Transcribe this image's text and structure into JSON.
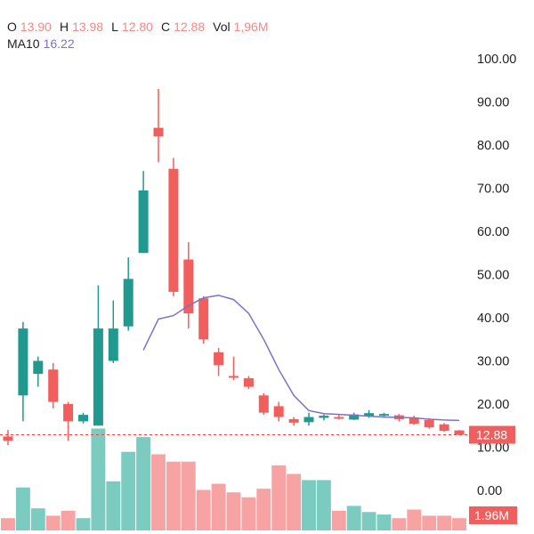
{
  "legend": {
    "ohlcv": [
      {
        "key": "O",
        "value": "13.90"
      },
      {
        "key": "H",
        "value": "13.98"
      },
      {
        "key": "L",
        "value": "12.80"
      },
      {
        "key": "C",
        "value": "12.88"
      },
      {
        "key": "Vol",
        "value": "1,96M"
      }
    ],
    "ma_key": "MA10",
    "ma_value": "16.22"
  },
  "price_tag": "12.88",
  "volume_tag": "1.96M",
  "colors": {
    "up": "#21998e",
    "down": "#f15e5e",
    "up_volume": "#7ccbc1",
    "down_volume": "#f7a3a3",
    "ma_line": "#7d70c9",
    "legend_value": "#f08a8a",
    "ma_value": "#7d70c9",
    "price_line": "#e04848"
  },
  "chart_data": {
    "type": "candlestick",
    "y_ticks": [
      "100.00",
      "90.00",
      "80.00",
      "70.00",
      "60.00",
      "50.00",
      "40.00",
      "30.00",
      "20.00",
      "10.00",
      "0.00"
    ],
    "ylim": [
      0,
      100
    ],
    "last_price": 12.88,
    "candles": [
      {
        "o": 12.5,
        "h": 14,
        "l": 10.5,
        "c": 11.5
      },
      {
        "o": 22,
        "h": 39,
        "l": 16,
        "c": 37.5
      },
      {
        "o": 27,
        "h": 31,
        "l": 24,
        "c": 30
      },
      {
        "o": 28,
        "h": 29.5,
        "l": 19,
        "c": 20.5
      },
      {
        "o": 20,
        "h": 20.5,
        "l": 11.5,
        "c": 16
      },
      {
        "o": 16,
        "h": 18,
        "l": 15.5,
        "c": 17.5
      },
      {
        "o": 15,
        "h": 47.5,
        "l": 15,
        "c": 37.5
      },
      {
        "o": 30,
        "h": 44,
        "l": 29.5,
        "c": 37.5
      },
      {
        "o": 38,
        "h": 54,
        "l": 37,
        "c": 49
      },
      {
        "o": 55,
        "h": 74,
        "l": 55,
        "c": 69.5
      },
      {
        "o": 84,
        "h": 93,
        "l": 76,
        "c": 82
      },
      {
        "o": 74.5,
        "h": 77,
        "l": 45,
        "c": 46
      },
      {
        "o": 53.5,
        "h": 57.5,
        "l": 37.5,
        "c": 41
      },
      {
        "o": 44.5,
        "h": 45,
        "l": 34,
        "c": 35
      },
      {
        "o": 32,
        "h": 33,
        "l": 26.5,
        "c": 29
      },
      {
        "o": 26.5,
        "h": 31,
        "l": 25.5,
        "c": 26.2
      },
      {
        "o": 26,
        "h": 26.5,
        "l": 23.5,
        "c": 24
      },
      {
        "o": 22,
        "h": 22.5,
        "l": 17.5,
        "c": 18
      },
      {
        "o": 19.5,
        "h": 20.5,
        "l": 16,
        "c": 17
      },
      {
        "o": 16.5,
        "h": 17,
        "l": 15,
        "c": 15.7
      },
      {
        "o": 15.8,
        "h": 18,
        "l": 15,
        "c": 17
      },
      {
        "o": 16.8,
        "h": 17.6,
        "l": 16.2,
        "c": 17.3
      },
      {
        "o": 17,
        "h": 17.5,
        "l": 16.5,
        "c": 16.8
      },
      {
        "o": 16.4,
        "h": 18,
        "l": 16.3,
        "c": 17.6
      },
      {
        "o": 17.2,
        "h": 18.6,
        "l": 16.8,
        "c": 17.9
      },
      {
        "o": 17.4,
        "h": 18,
        "l": 16.9,
        "c": 17.7
      },
      {
        "o": 17.4,
        "h": 17.7,
        "l": 16,
        "c": 16.5
      },
      {
        "o": 16.7,
        "h": 17.3,
        "l": 15.2,
        "c": 15.4
      },
      {
        "o": 16.3,
        "h": 16.7,
        "l": 14.3,
        "c": 14.6
      },
      {
        "o": 15.3,
        "h": 15.6,
        "l": 13.6,
        "c": 13.8
      },
      {
        "o": 13.9,
        "h": 13.98,
        "l": 12.8,
        "c": 12.88
      }
    ],
    "volume_scale": [
      0,
      100
    ],
    "volumes": [
      10,
      35,
      18,
      12,
      16,
      10,
      83,
      40,
      64,
      76,
      62,
      56,
      56,
      33,
      38,
      31,
      27,
      34,
      53,
      46,
      41,
      41,
      16,
      20,
      15,
      13,
      10,
      17,
      12,
      12,
      10
    ],
    "ma10": [
      null,
      null,
      null,
      null,
      null,
      null,
      null,
      null,
      null,
      32.5,
      39.7,
      40.5,
      42.8,
      44.6,
      45.2,
      44.2,
      41,
      35,
      28,
      22,
      18.5,
      17.8,
      17.6,
      17.4,
      17.2,
      17,
      16.9,
      16.8,
      16.5,
      16.3,
      16.2
    ]
  }
}
